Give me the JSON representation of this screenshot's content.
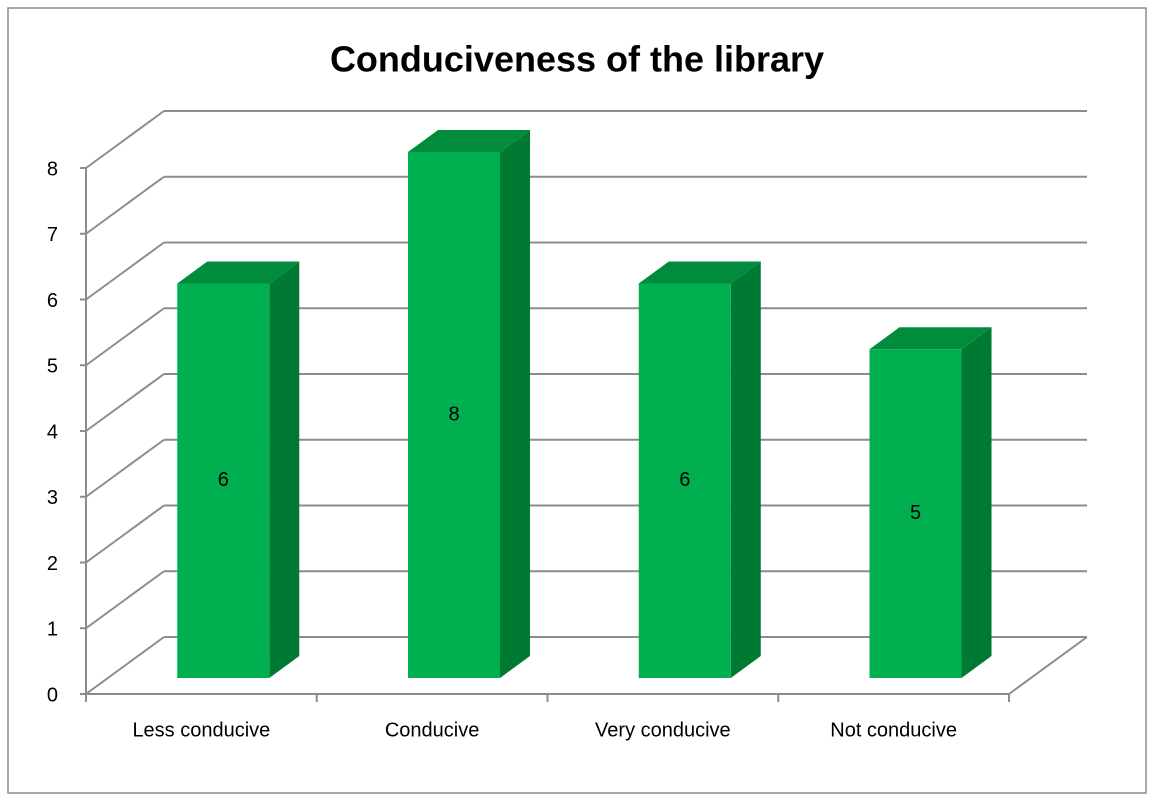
{
  "chart_data": {
    "type": "bar3d",
    "title": "Conduciveness of the library",
    "categories": [
      "Less conducive",
      "Conducive",
      "Very conducive",
      "Not conducive"
    ],
    "values": [
      6,
      8,
      6,
      5
    ],
    "color": "#00b050",
    "ylim": [
      0,
      8
    ],
    "yticks": [
      0,
      1,
      2,
      3,
      4,
      5,
      6,
      7,
      8
    ],
    "grid": true
  }
}
